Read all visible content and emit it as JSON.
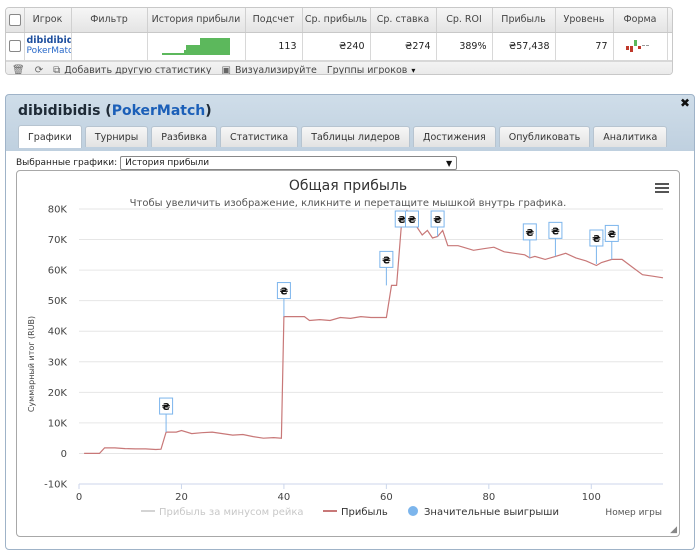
{
  "stats": {
    "headers": [
      "Игрок",
      "Фильтр",
      "История прибыли",
      "Подсчет",
      "Ср. прибыль",
      "Ср. ставка",
      "Ср. ROI",
      "Прибыль",
      "Уровень",
      "Форма"
    ],
    "row": {
      "player": "dibidibidis",
      "site": "PokerMatch",
      "count": "113",
      "avg_profit": "₴240",
      "avg_stake": "₴274",
      "avg_roi": "389%",
      "profit": "₴57,438",
      "level": "77",
      "remove": "x"
    },
    "toolbar": {
      "add_stat": "Добавить другую статистику",
      "visualize": "Визуализируйте",
      "groups": "Группы игроков"
    }
  },
  "window": {
    "player": "dibidibidis",
    "site": "PokerMatch",
    "tabs": [
      "Графики",
      "Турниры",
      "Разбивка",
      "Статистика",
      "Таблицы лидеров",
      "Достижения",
      "Опубликовать",
      "Аналитика"
    ],
    "active_tab": 0,
    "chart_select_label": "Выбранные графики:",
    "chart_select_value": "История прибыли"
  },
  "chart_data": {
    "type": "line",
    "title": "Общая прибыль",
    "subtitle": "Чтобы увеличить изображение, кликните и перетащите мышкой внутрь графика.",
    "ylabel": "Суммарный итог (RUB)",
    "xlabel": "Номер игры",
    "ylim": [
      -10000,
      80000
    ],
    "xlim": [
      0,
      114
    ],
    "yticks": [
      -10000,
      0,
      10000,
      20000,
      30000,
      40000,
      50000,
      60000,
      70000,
      80000
    ],
    "ytick_labels": [
      "-10K",
      "0",
      "10K",
      "20K",
      "30K",
      "40K",
      "50K",
      "60K",
      "70K",
      "80K"
    ],
    "xticks": [
      0,
      20,
      40,
      60,
      80,
      100
    ],
    "grid": true,
    "legend": [
      "Прибыль за минусом рейка",
      "Прибыль",
      "Значительные выигрыши"
    ],
    "series": [
      {
        "name": "Прибыль",
        "color": "#c87878",
        "points": [
          [
            1,
            0
          ],
          [
            4,
            0
          ],
          [
            5,
            1800
          ],
          [
            7,
            1800
          ],
          [
            9,
            1600
          ],
          [
            11,
            1500
          ],
          [
            13,
            1500
          ],
          [
            15,
            1300
          ],
          [
            16,
            1400
          ],
          [
            17,
            7000
          ],
          [
            19,
            7000
          ],
          [
            20,
            7500
          ],
          [
            22,
            6500
          ],
          [
            24,
            6800
          ],
          [
            26,
            7000
          ],
          [
            28,
            6500
          ],
          [
            30,
            6000
          ],
          [
            32,
            6200
          ],
          [
            34,
            5500
          ],
          [
            36,
            5000
          ],
          [
            38,
            5200
          ],
          [
            39.5,
            5000
          ],
          [
            40,
            44800
          ],
          [
            44,
            44800
          ],
          [
            45,
            43500
          ],
          [
            47,
            43800
          ],
          [
            49,
            43500
          ],
          [
            51,
            44500
          ],
          [
            53,
            44200
          ],
          [
            55,
            44800
          ],
          [
            57,
            44500
          ],
          [
            60,
            44500
          ],
          [
            61,
            55000
          ],
          [
            62,
            55000
          ],
          [
            63,
            76000
          ],
          [
            64,
            79500
          ],
          [
            65,
            77000
          ],
          [
            66,
            74000
          ],
          [
            67,
            71500
          ],
          [
            68,
            73000
          ],
          [
            69,
            70500
          ],
          [
            70,
            71000
          ],
          [
            71,
            73000
          ],
          [
            72,
            68000
          ],
          [
            74,
            68000
          ],
          [
            75,
            67500
          ],
          [
            77,
            66500
          ],
          [
            79,
            67000
          ],
          [
            81,
            67500
          ],
          [
            83,
            66000
          ],
          [
            85,
            65500
          ],
          [
            87,
            65000
          ],
          [
            88,
            64000
          ],
          [
            89,
            64500
          ],
          [
            91,
            63500
          ],
          [
            93,
            64500
          ],
          [
            95,
            65500
          ],
          [
            97,
            64000
          ],
          [
            99,
            63000
          ],
          [
            101,
            61500
          ],
          [
            102,
            62500
          ],
          [
            104,
            63500
          ],
          [
            106,
            63500
          ],
          [
            108,
            61000
          ],
          [
            110,
            58500
          ],
          [
            112,
            58000
          ],
          [
            114,
            57500
          ]
        ]
      }
    ],
    "big_wins": [
      [
        17,
        7000
      ],
      [
        40,
        44800
      ],
      [
        60,
        55000
      ],
      [
        63,
        78000
      ],
      [
        65,
        76500
      ],
      [
        70,
        71000
      ],
      [
        88,
        64000
      ],
      [
        93,
        64500
      ],
      [
        101,
        62000
      ],
      [
        104,
        63500
      ]
    ],
    "big_win_symbol": "₴"
  }
}
